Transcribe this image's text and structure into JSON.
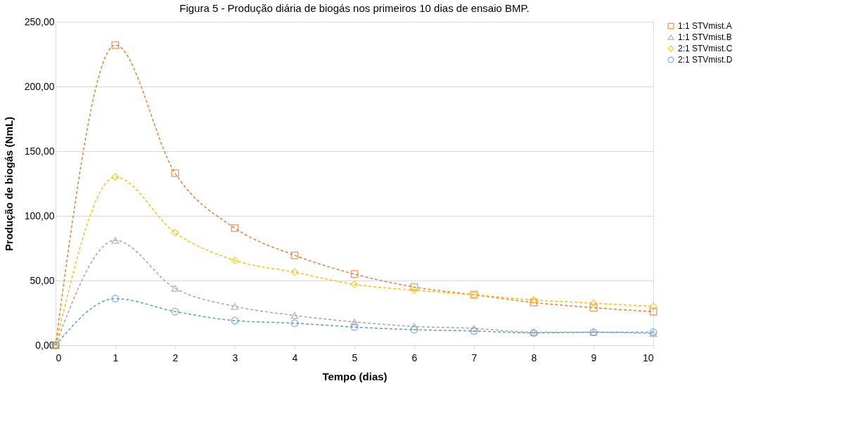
{
  "chart_data": {
    "type": "line",
    "title": "Figura 5 - Produção diária de biogás nos primeiros 10 dias de ensaio BMP.",
    "xlabel": "Tempo (dias)",
    "ylabel": "Produção de biogás (NmL)",
    "x": [
      0,
      1,
      2,
      3,
      4,
      5,
      6,
      7,
      8,
      9,
      10
    ],
    "xlim": [
      0,
      10
    ],
    "xticks": [
      0,
      1,
      2,
      3,
      4,
      5,
      6,
      7,
      8,
      9,
      10
    ],
    "ylim": [
      0,
      250
    ],
    "yticks": [
      {
        "value": 0,
        "label": "0,00"
      },
      {
        "value": 50,
        "label": "50,00"
      },
      {
        "value": 100,
        "label": "100,00"
      },
      {
        "value": 150,
        "label": "150,00"
      },
      {
        "value": 200,
        "label": "200,00"
      },
      {
        "value": 250,
        "label": "250,00"
      }
    ],
    "grid": "y",
    "legend": "right",
    "line_style": "dashed",
    "series": [
      {
        "name": "1:1 STVmist.A",
        "color": "#ed7d31",
        "marker": "square",
        "values": [
          0,
          232,
          133,
          90.5,
          69.5,
          55,
          45,
          39,
          33,
          29,
          26
        ]
      },
      {
        "name": "1:1 STVmist.B",
        "color": "#a5a5a5",
        "marker": "triangle",
        "values": [
          0,
          81,
          44,
          30,
          23,
          18,
          14.5,
          13,
          10,
          10,
          9
        ]
      },
      {
        "name": "2:1 STVmist.C",
        "color": "#ffc000",
        "marker": "diamond",
        "values": [
          0,
          130,
          87,
          65.5,
          56.5,
          47,
          42.5,
          39,
          35,
          32.5,
          30
        ]
      },
      {
        "name": "2:1 STVmist.D",
        "color": "#5b9bd5",
        "marker": "circle",
        "values": [
          0,
          36,
          26,
          19,
          17,
          14,
          12,
          11,
          9.5,
          10,
          10
        ]
      }
    ]
  }
}
